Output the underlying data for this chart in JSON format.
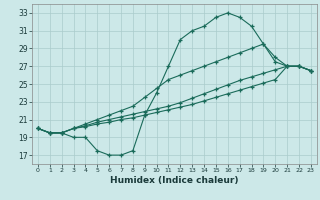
{
  "background_color": "#cce8e8",
  "grid_color": "#aacccc",
  "line_color": "#1a6b5a",
  "xlabel": "Humidex (Indice chaleur)",
  "xlim": [
    -0.5,
    23.5
  ],
  "ylim": [
    16.0,
    34.0
  ],
  "yticks": [
    17,
    19,
    21,
    23,
    25,
    27,
    29,
    31,
    33
  ],
  "xticks": [
    0,
    1,
    2,
    3,
    4,
    5,
    6,
    7,
    8,
    9,
    10,
    11,
    12,
    13,
    14,
    15,
    16,
    17,
    18,
    19,
    20,
    21,
    22,
    23
  ],
  "line1_x": [
    0,
    1,
    2,
    3,
    4,
    5,
    6,
    7,
    8,
    9,
    10,
    11,
    12,
    13,
    14,
    15,
    16,
    17,
    18,
    19,
    20,
    21,
    22,
    23
  ],
  "line1_y": [
    20.0,
    19.5,
    19.5,
    19.0,
    19.0,
    17.5,
    17.0,
    17.0,
    17.5,
    21.5,
    24.0,
    27.0,
    30.0,
    31.0,
    31.5,
    32.5,
    33.0,
    32.5,
    31.5,
    29.5,
    28.0,
    27.0,
    27.0,
    26.5
  ],
  "line2_x": [
    0,
    1,
    2,
    3,
    4,
    5,
    6,
    7,
    8,
    9,
    10,
    11,
    12,
    13,
    14,
    15,
    16,
    17,
    18,
    19,
    20,
    21,
    22,
    23
  ],
  "line2_y": [
    20.0,
    19.5,
    19.5,
    20.0,
    20.5,
    21.0,
    21.5,
    22.0,
    22.5,
    23.5,
    24.5,
    25.5,
    26.0,
    26.5,
    27.0,
    27.5,
    28.0,
    28.5,
    29.0,
    29.5,
    27.5,
    27.0,
    27.0,
    26.5
  ],
  "line3_x": [
    0,
    1,
    2,
    3,
    4,
    5,
    6,
    7,
    8,
    9,
    10,
    11,
    12,
    13,
    14,
    15,
    16,
    17,
    18,
    19,
    20,
    21,
    22,
    23
  ],
  "line3_y": [
    20.0,
    19.5,
    19.5,
    20.0,
    20.3,
    20.7,
    21.0,
    21.3,
    21.6,
    21.9,
    22.2,
    22.5,
    22.9,
    23.4,
    23.9,
    24.4,
    24.9,
    25.4,
    25.8,
    26.2,
    26.6,
    27.0,
    27.0,
    26.5
  ],
  "line4_x": [
    0,
    1,
    2,
    3,
    4,
    5,
    6,
    7,
    8,
    9,
    10,
    11,
    12,
    13,
    14,
    15,
    16,
    17,
    18,
    19,
    20,
    21,
    22,
    23
  ],
  "line4_y": [
    20.0,
    19.5,
    19.5,
    20.0,
    20.2,
    20.5,
    20.7,
    21.0,
    21.2,
    21.5,
    21.8,
    22.1,
    22.4,
    22.7,
    23.1,
    23.5,
    23.9,
    24.3,
    24.7,
    25.1,
    25.5,
    27.0,
    27.0,
    26.5
  ]
}
